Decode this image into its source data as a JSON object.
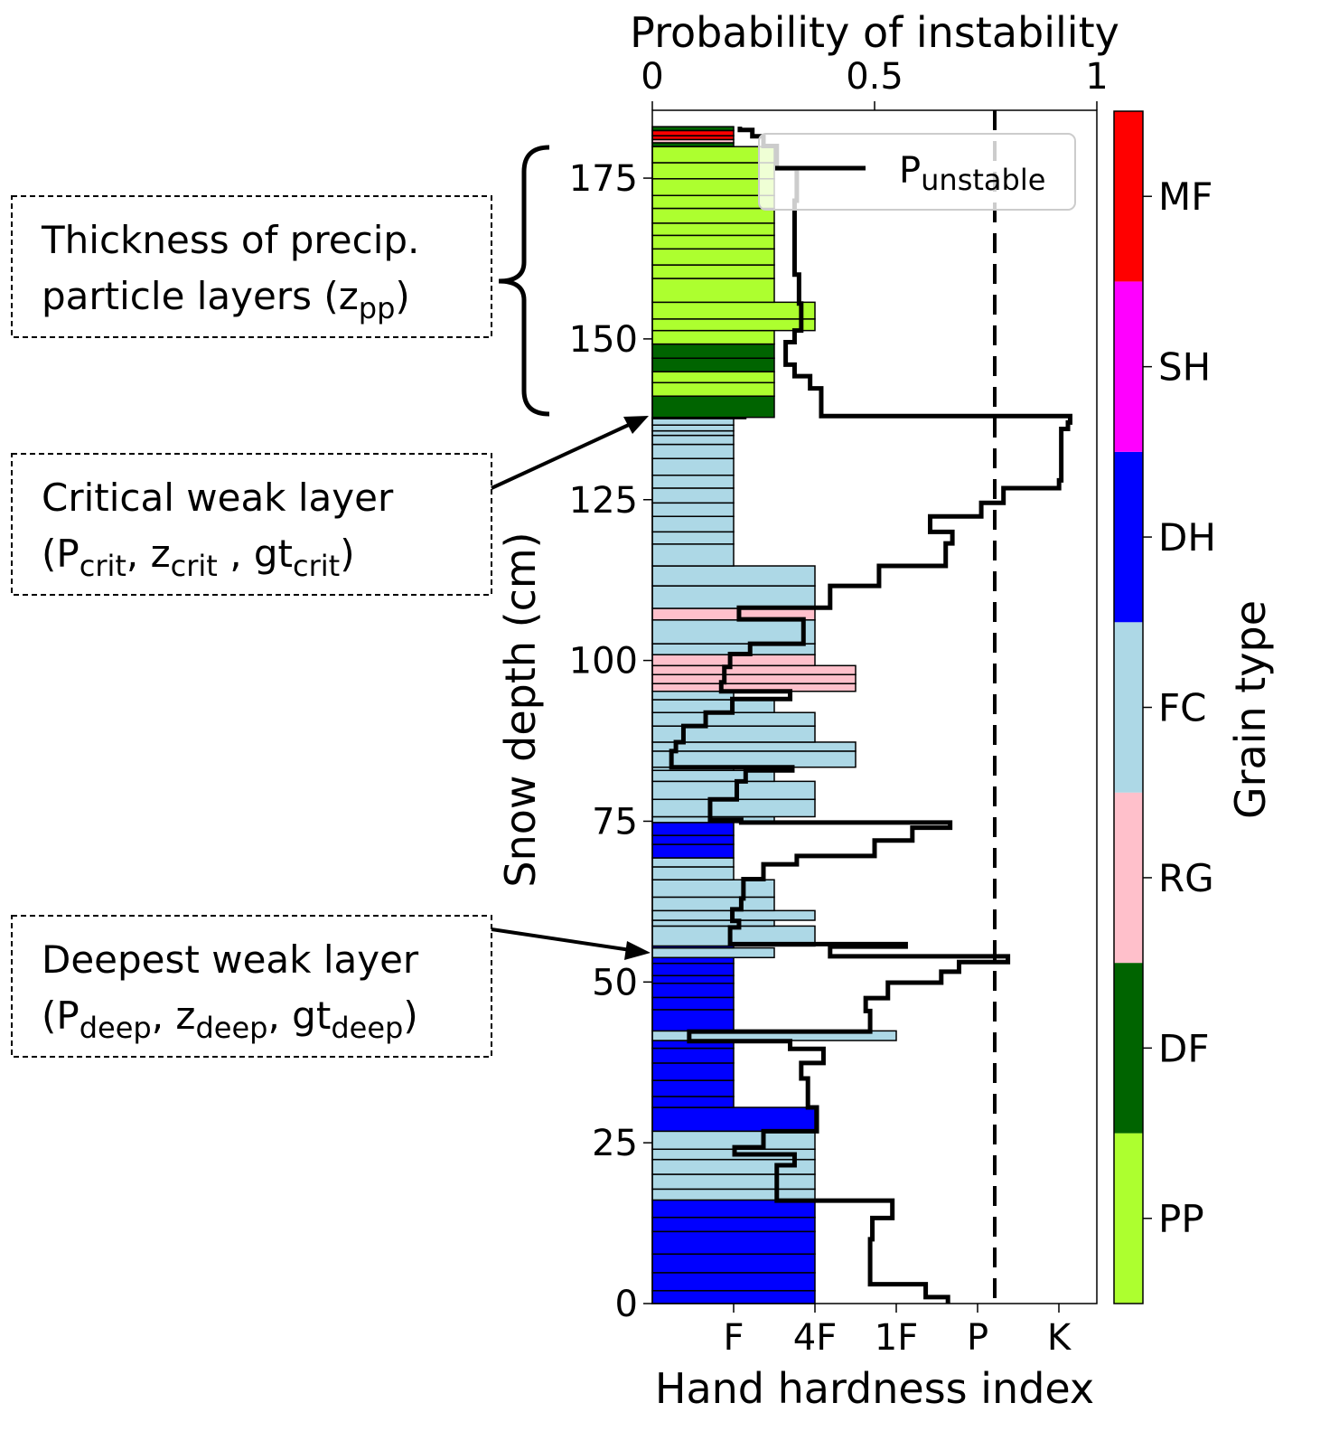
{
  "chart_data": {
    "type": "bar",
    "title": "Probability of instability",
    "xlabel": "Hand hardness index",
    "ylabel": "Snow depth (cm)",
    "ylim": [
      0,
      185.5
    ],
    "hardness_lim": [
      0,
      5.47
    ],
    "prob_lim": [
      0,
      1
    ],
    "y_ticks": [
      0,
      25,
      50,
      75,
      100,
      125,
      150,
      175
    ],
    "y_tick_labels": [
      "0",
      "25",
      "50",
      "75",
      "100",
      "125",
      "150",
      "175"
    ],
    "top_ticks": [
      0,
      0.5,
      1
    ],
    "top_tick_labels": [
      "0",
      "0.5",
      "1"
    ],
    "bottom_ticks": [
      1,
      2,
      3,
      4,
      5
    ],
    "bottom_tick_labels": [
      "F",
      "4F",
      "1F",
      "P",
      "K"
    ],
    "threshold": 0.77,
    "legend": {
      "label_main": "P",
      "label_sub": "unstable",
      "placement": "top-right"
    },
    "grain_colors": {
      "PP": "#adff2f",
      "DF": "#006400",
      "RG": "#ffc0cb",
      "FC": "#add8e6",
      "DH": "#0000ff",
      "SH": "#ff00ff",
      "MF": "#ff0000"
    },
    "colorbar": {
      "label": "Grain type",
      "categories": [
        "PP",
        "DF",
        "RG",
        "FC",
        "DH",
        "SH",
        "MF"
      ]
    },
    "layers_columns": [
      "bottom_cm",
      "top_cm",
      "grain_type",
      "hardness"
    ],
    "layers": [
      [
        0,
        2,
        "DH",
        2
      ],
      [
        2,
        4.8,
        "DH",
        2
      ],
      [
        4.8,
        7.7,
        "DH",
        2
      ],
      [
        7.7,
        11.2,
        "DH",
        2
      ],
      [
        11.2,
        13.4,
        "DH",
        2
      ],
      [
        13.4,
        16.1,
        "DH",
        2
      ],
      [
        16.1,
        17.8,
        "FC",
        2
      ],
      [
        17.8,
        20.1,
        "FC",
        2
      ],
      [
        20.1,
        22.4,
        "FC",
        2
      ],
      [
        22.4,
        24,
        "FC",
        2
      ],
      [
        24,
        26.8,
        "FC",
        2
      ],
      [
        26.8,
        30.5,
        "DH",
        2
      ],
      [
        30.5,
        32.2,
        "DH",
        1
      ],
      [
        32.2,
        34.7,
        "DH",
        1
      ],
      [
        34.7,
        37.4,
        "DH",
        1
      ],
      [
        37.4,
        39.7,
        "DH",
        1
      ],
      [
        39.7,
        40.9,
        "DH",
        1
      ],
      [
        40.9,
        42.4,
        "FC",
        3
      ],
      [
        42.4,
        45.7,
        "DH",
        1
      ],
      [
        45.7,
        47.6,
        "DH",
        1
      ],
      [
        47.6,
        49.8,
        "DH",
        1
      ],
      [
        49.8,
        51,
        "DH",
        1
      ],
      [
        51,
        52.9,
        "DH",
        1
      ],
      [
        52.9,
        53.8,
        "DH",
        1
      ],
      [
        53.8,
        55.3,
        "FC",
        1.5
      ],
      [
        55.3,
        55.6,
        "DH",
        1
      ],
      [
        55.6,
        58.7,
        "FC",
        2
      ],
      [
        58.7,
        59.6,
        "FC",
        1.5
      ],
      [
        59.6,
        61.1,
        "FC",
        2
      ],
      [
        61.1,
        63.2,
        "FC",
        1.5
      ],
      [
        63.2,
        65.9,
        "FC",
        1.5
      ],
      [
        65.9,
        67.9,
        "FC",
        1
      ],
      [
        67.9,
        69.3,
        "FC",
        1
      ],
      [
        69.3,
        71.4,
        "DH",
        1
      ],
      [
        71.4,
        72.8,
        "DH",
        1
      ],
      [
        72.8,
        74.8,
        "DH",
        1
      ],
      [
        74.8,
        75.7,
        "FC",
        1.5
      ],
      [
        75.7,
        78.4,
        "FC",
        2
      ],
      [
        78.4,
        81.2,
        "FC",
        2
      ],
      [
        81.2,
        82.9,
        "FC",
        1.5
      ],
      [
        82.9,
        83.4,
        "FC",
        1
      ],
      [
        83.4,
        85.9,
        "FC",
        2.5
      ],
      [
        85.9,
        87.3,
        "FC",
        2.5
      ],
      [
        87.3,
        89.8,
        "FC",
        2
      ],
      [
        89.8,
        91.9,
        "FC",
        2
      ],
      [
        91.9,
        93.9,
        "FC",
        1.5
      ],
      [
        93.9,
        95.2,
        "FC",
        1
      ],
      [
        95.2,
        96.4,
        "RG",
        2.5
      ],
      [
        96.4,
        97.8,
        "RG",
        2.5
      ],
      [
        97.8,
        99.2,
        "RG",
        2.5
      ],
      [
        99.2,
        100.9,
        "RG",
        2
      ],
      [
        100.9,
        102.6,
        "FC",
        2
      ],
      [
        102.6,
        106.3,
        "FC",
        2
      ],
      [
        106.3,
        108.1,
        "RG",
        2
      ],
      [
        108.1,
        111.6,
        "FC",
        2
      ],
      [
        111.6,
        114.7,
        "FC",
        2
      ],
      [
        114.7,
        118.1,
        "FC",
        1
      ],
      [
        118.1,
        120,
        "FC",
        1
      ],
      [
        120,
        122.4,
        "FC",
        1
      ],
      [
        122.4,
        124.5,
        "FC",
        1
      ],
      [
        124.5,
        126.8,
        "FC",
        1
      ],
      [
        126.8,
        128.8,
        "FC",
        1
      ],
      [
        128.8,
        131.4,
        "FC",
        1
      ],
      [
        131.4,
        133.6,
        "FC",
        1
      ],
      [
        133.6,
        135,
        "FC",
        1
      ],
      [
        135,
        135.7,
        "FC",
        1
      ],
      [
        135.7,
        136.6,
        "FC",
        1
      ],
      [
        136.6,
        137.6,
        "FC",
        1
      ],
      [
        137.6,
        137.8,
        "SH",
        1.15
      ],
      [
        137.8,
        141.1,
        "DF",
        1.5
      ],
      [
        141.1,
        143.2,
        "PP",
        1.5
      ],
      [
        143.2,
        144.9,
        "PP",
        1.5
      ],
      [
        144.9,
        147,
        "DF",
        1.5
      ],
      [
        147,
        149.2,
        "DF",
        1.5
      ],
      [
        149.2,
        151.3,
        "PP",
        1.5
      ],
      [
        151.3,
        153.1,
        "PP",
        2
      ],
      [
        153.1,
        155.7,
        "PP",
        2
      ],
      [
        155.7,
        159.4,
        "PP",
        1.5
      ],
      [
        159.4,
        161.5,
        "PP",
        1.5
      ],
      [
        161.5,
        164,
        "PP",
        1.5
      ],
      [
        164,
        166.1,
        "PP",
        1.5
      ],
      [
        166.1,
        168,
        "PP",
        1.5
      ],
      [
        168,
        170.3,
        "PP",
        1.5
      ],
      [
        170.3,
        172.3,
        "PP",
        1.5
      ],
      [
        172.3,
        174.9,
        "PP",
        1.5
      ],
      [
        174.9,
        177.4,
        "PP",
        1.5
      ],
      [
        177.4,
        179.9,
        "PP",
        1.5
      ],
      [
        179.9,
        180.5,
        "DF",
        1
      ],
      [
        180.5,
        181,
        "RG",
        1
      ],
      [
        181,
        181.6,
        "MF",
        1
      ],
      [
        181.6,
        182.4,
        "MF",
        1
      ],
      [
        182.4,
        183,
        "DF",
        1
      ]
    ],
    "p_unstable_columns": [
      "bottom_cm",
      "top_cm",
      "probability"
    ],
    "p_unstable": [
      [
        0,
        1,
        0.665
      ],
      [
        1,
        3,
        0.615
      ],
      [
        3,
        10,
        0.49
      ],
      [
        10,
        13.3,
        0.495
      ],
      [
        13.3,
        16,
        0.54
      ],
      [
        16,
        21.5,
        0.28
      ],
      [
        21.5,
        23.2,
        0.32
      ],
      [
        23.2,
        24.3,
        0.185
      ],
      [
        24.3,
        26.8,
        0.25
      ],
      [
        26.8,
        30.5,
        0.37
      ],
      [
        30.5,
        35,
        0.35
      ],
      [
        35,
        37.4,
        0.335
      ],
      [
        37.4,
        39.6,
        0.385
      ],
      [
        39.6,
        40.8,
        0.31
      ],
      [
        40.8,
        42.3,
        0.083
      ],
      [
        42.3,
        45.5,
        0.49
      ],
      [
        45.5,
        47.5,
        0.48
      ],
      [
        47.5,
        49.9,
        0.53
      ],
      [
        49.9,
        51.6,
        0.65
      ],
      [
        51.6,
        53.1,
        0.69
      ],
      [
        53.1,
        54,
        0.8
      ],
      [
        54,
        55.5,
        0.4
      ],
      [
        55.5,
        55.9,
        0.57
      ],
      [
        55.9,
        58.5,
        0.175
      ],
      [
        58.5,
        59.5,
        0.195
      ],
      [
        59.5,
        61.3,
        0.18
      ],
      [
        61.3,
        63,
        0.2
      ],
      [
        63,
        66,
        0.205
      ],
      [
        66,
        68.3,
        0.25
      ],
      [
        68.3,
        69.6,
        0.325
      ],
      [
        69.6,
        72,
        0.5
      ],
      [
        72,
        74,
        0.585
      ],
      [
        74,
        74.8,
        0.67
      ],
      [
        74.8,
        75.2,
        0.2
      ],
      [
        75.2,
        78.4,
        0.13
      ],
      [
        78.4,
        81.2,
        0.19
      ],
      [
        81.2,
        82.9,
        0.21
      ],
      [
        82.9,
        83.4,
        0.315
      ],
      [
        83.4,
        85.9,
        0.043
      ],
      [
        85.9,
        87.3,
        0.053
      ],
      [
        87.3,
        89.8,
        0.07
      ],
      [
        89.8,
        91.9,
        0.12
      ],
      [
        91.9,
        94,
        0.18
      ],
      [
        94,
        95.2,
        0.31
      ],
      [
        95.2,
        96.6,
        0.155
      ],
      [
        96.6,
        99,
        0.162
      ],
      [
        99,
        101,
        0.175
      ],
      [
        101,
        102.6,
        0.22
      ],
      [
        102.6,
        106.4,
        0.34
      ],
      [
        106.4,
        108.2,
        0.195
      ],
      [
        108.2,
        111.6,
        0.4
      ],
      [
        111.6,
        114.7,
        0.51
      ],
      [
        114.7,
        118.2,
        0.66
      ],
      [
        118.2,
        120,
        0.675
      ],
      [
        120,
        122.4,
        0.625
      ],
      [
        122.4,
        124.5,
        0.74
      ],
      [
        124.5,
        126.8,
        0.79
      ],
      [
        126.8,
        128,
        0.915
      ],
      [
        128,
        136,
        0.92
      ],
      [
        136,
        137,
        0.935
      ],
      [
        137,
        138,
        0.94
      ],
      [
        138,
        142.3,
        0.38
      ],
      [
        142.3,
        144.2,
        0.355
      ],
      [
        144.2,
        146,
        0.32
      ],
      [
        146,
        149.5,
        0.3
      ],
      [
        149.5,
        151.3,
        0.32
      ],
      [
        151.3,
        155.5,
        0.335
      ],
      [
        155.5,
        160,
        0.33
      ],
      [
        160,
        171.5,
        0.32
      ],
      [
        171.5,
        176.5,
        0.325
      ],
      [
        176.5,
        180,
        0.28
      ],
      [
        180,
        181.5,
        0.25
      ],
      [
        181.5,
        182.5,
        0.225
      ],
      [
        182.5,
        183,
        0.197
      ]
    ],
    "annotations": [
      {
        "line1": "Thickness of precip.",
        "line2": [
          {
            "t": "particle layers (z"
          },
          {
            "t": "pp",
            "sub": true
          },
          {
            "t": ")"
          }
        ]
      },
      {
        "line1": "Critical weak layer",
        "line2": [
          {
            "t": "(P"
          },
          {
            "t": "crit",
            "sub": true
          },
          {
            "t": ", z"
          },
          {
            "t": "crit",
            "sub": true
          },
          {
            "t": " , gt"
          },
          {
            "t": "crit",
            "sub": true
          },
          {
            "t": ")"
          }
        ]
      },
      {
        "line1": "Deepest weak layer",
        "line2": [
          {
            "t": "(P"
          },
          {
            "t": "deep",
            "sub": true
          },
          {
            "t": ", z"
          },
          {
            "t": "deep",
            "sub": true
          },
          {
            "t": ", gt"
          },
          {
            "t": "deep",
            "sub": true
          },
          {
            "t": ")"
          }
        ]
      }
    ]
  }
}
